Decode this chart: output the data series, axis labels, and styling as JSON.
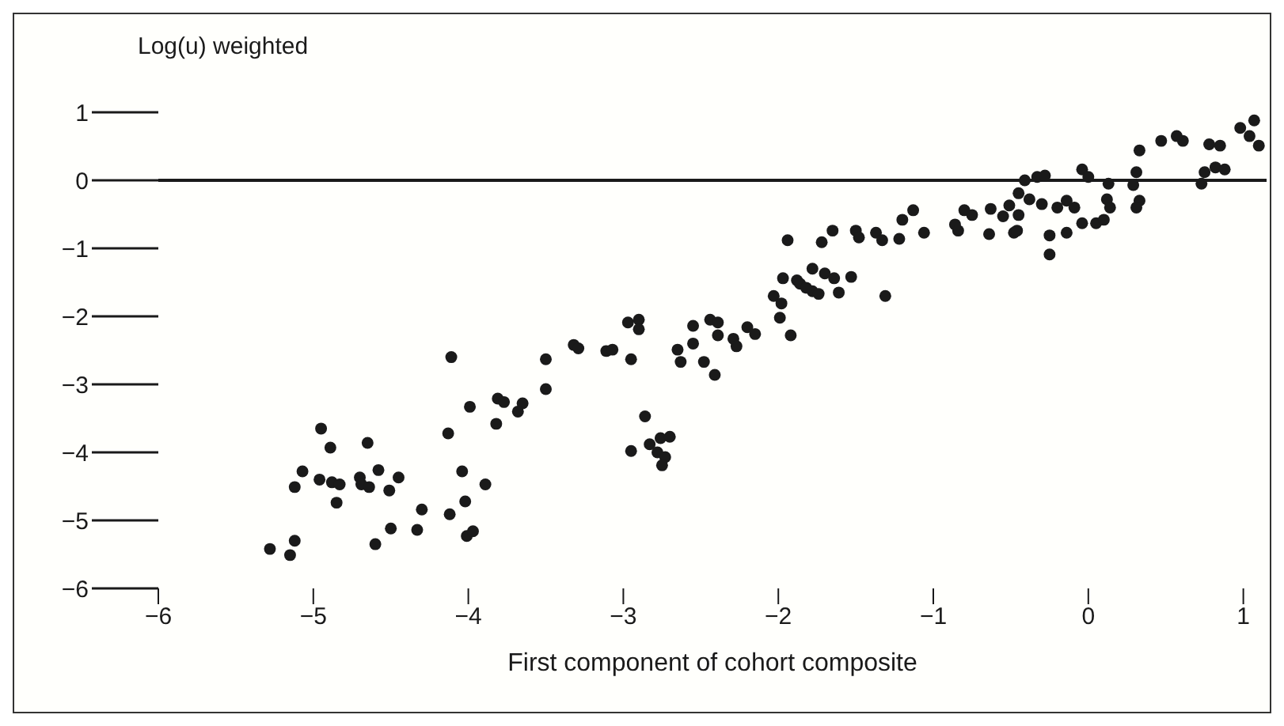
{
  "chart_data": {
    "type": "scatter",
    "xlabel": "First component of cohort composite",
    "ylabel": "Log(u) weighted",
    "xlim": [
      -6,
      1.15
    ],
    "xticks": [
      -6,
      -5,
      -4,
      -3,
      -2,
      -1,
      0,
      1
    ],
    "ylim": [
      -6,
      1
    ],
    "yticks": [
      1,
      0,
      -1,
      -2,
      -3,
      -4,
      -5,
      -6
    ],
    "grid": false,
    "marker": "circle",
    "ref_lines": [
      {
        "axis": "y",
        "value": 0,
        "color": "#1a1a1a"
      }
    ],
    "series": [
      {
        "color": "#1a1a1a",
        "x": [
          -4.11,
          -3.99,
          -3.81,
          -3.77,
          -3.65,
          -3.68,
          -3.82,
          -4.13,
          -4.95,
          -4.89,
          -4.65,
          -5.07,
          -5.12,
          -4.96,
          -4.88,
          -4.83,
          -4.7,
          -4.69,
          -4.64,
          -4.58,
          -4.45,
          -4.51,
          -4.85,
          -4.04,
          -3.89,
          -4.02,
          -4.3,
          -4.12,
          -4.5,
          -4.33,
          -4.01,
          -3.97,
          -4.6,
          -5.12,
          -5.28,
          -5.15,
          -3.5,
          -3.5,
          -3.32,
          -3.29,
          -3.11,
          -3.07,
          -2.95,
          -2.97,
          -2.9,
          -2.9,
          -2.55,
          -2.44,
          -2.39,
          -2.65,
          -2.55,
          -2.63,
          -2.48,
          -2.41,
          -2.39,
          -2.29,
          -2.2,
          -2.15,
          -2.27,
          -1.97,
          -2.03,
          -1.98,
          -1.99,
          -1.92,
          -1.88,
          -1.78,
          -2.86,
          -2.95,
          -2.83,
          -2.76,
          -2.7,
          -2.78,
          -2.73,
          -2.75,
          -1.94,
          -1.72,
          -1.65,
          -1.5,
          -1.48,
          -1.37,
          -1.33,
          -1.22,
          -1.13,
          -1.2,
          -1.06,
          -0.86,
          -0.84,
          -0.8,
          -0.75,
          -0.63,
          -0.55,
          -0.51,
          -0.48,
          -0.64,
          -0.45,
          -1.78,
          -1.7,
          -1.64,
          -1.53,
          -1.86,
          -1.82,
          -1.74,
          -1.61,
          -1.31,
          1.07,
          0.98,
          1.1,
          1.04,
          0.78,
          0.85,
          0.61,
          0.57,
          0.47,
          0.33,
          0.75,
          0.82,
          0.73,
          0.88,
          0.31,
          0.29,
          0.33,
          0.31,
          0.13,
          0.12,
          0.14,
          -0.04,
          0,
          -0.33,
          -0.28,
          -0.41,
          -0.38,
          -0.3,
          -0.2,
          -0.14,
          -0.09,
          -0.45,
          -0.46,
          -0.04,
          0.05,
          0.1,
          -0.14,
          -0.25,
          -0.25
        ],
        "values": [
          -2.6,
          -3.33,
          -3.21,
          -3.26,
          -3.28,
          -3.4,
          -3.58,
          -3.72,
          -3.65,
          -3.93,
          -3.86,
          -4.28,
          -4.51,
          -4.4,
          -4.44,
          -4.47,
          -4.37,
          -4.47,
          -4.51,
          -4.26,
          -4.37,
          -4.56,
          -4.74,
          -4.28,
          -4.47,
          -4.72,
          -4.84,
          -4.91,
          -5.12,
          -5.14,
          -5.23,
          -5.16,
          -5.35,
          -5.3,
          -5.42,
          -5.51,
          -3.07,
          -2.63,
          -2.42,
          -2.47,
          -2.51,
          -2.49,
          -2.63,
          -2.09,
          -2.05,
          -2.19,
          -2.14,
          -2.05,
          -2.09,
          -2.49,
          -2.4,
          -2.67,
          -2.67,
          -2.86,
          -2.28,
          -2.33,
          -2.16,
          -2.26,
          -2.44,
          -1.44,
          -1.7,
          -1.81,
          -2.02,
          -2.28,
          -1.47,
          -1.63,
          -3.47,
          -3.98,
          -3.88,
          -3.79,
          -3.77,
          -4,
          -4.07,
          -4.19,
          -0.88,
          -0.91,
          -0.74,
          -0.74,
          -0.84,
          -0.77,
          -0.88,
          -0.86,
          -0.44,
          -0.58,
          -0.77,
          -0.65,
          -0.74,
          -0.44,
          -0.51,
          -0.42,
          -0.53,
          -0.37,
          -0.77,
          -0.79,
          -0.19,
          -1.3,
          -1.37,
          -1.44,
          -1.42,
          -1.52,
          -1.58,
          -1.67,
          -1.65,
          -1.7,
          0.88,
          0.77,
          0.51,
          0.65,
          0.53,
          0.51,
          0.58,
          0.65,
          0.58,
          0.44,
          0.12,
          0.19,
          -0.05,
          0.16,
          0.12,
          -0.07,
          -0.3,
          -0.4,
          -0.05,
          -0.28,
          -0.4,
          0.16,
          0.05,
          0.05,
          0.07,
          0,
          -0.28,
          -0.35,
          -0.4,
          -0.3,
          -0.4,
          -0.51,
          -0.74,
          -0.63,
          -0.63,
          -0.58,
          -0.77,
          -0.81,
          -1.09
        ]
      }
    ]
  }
}
